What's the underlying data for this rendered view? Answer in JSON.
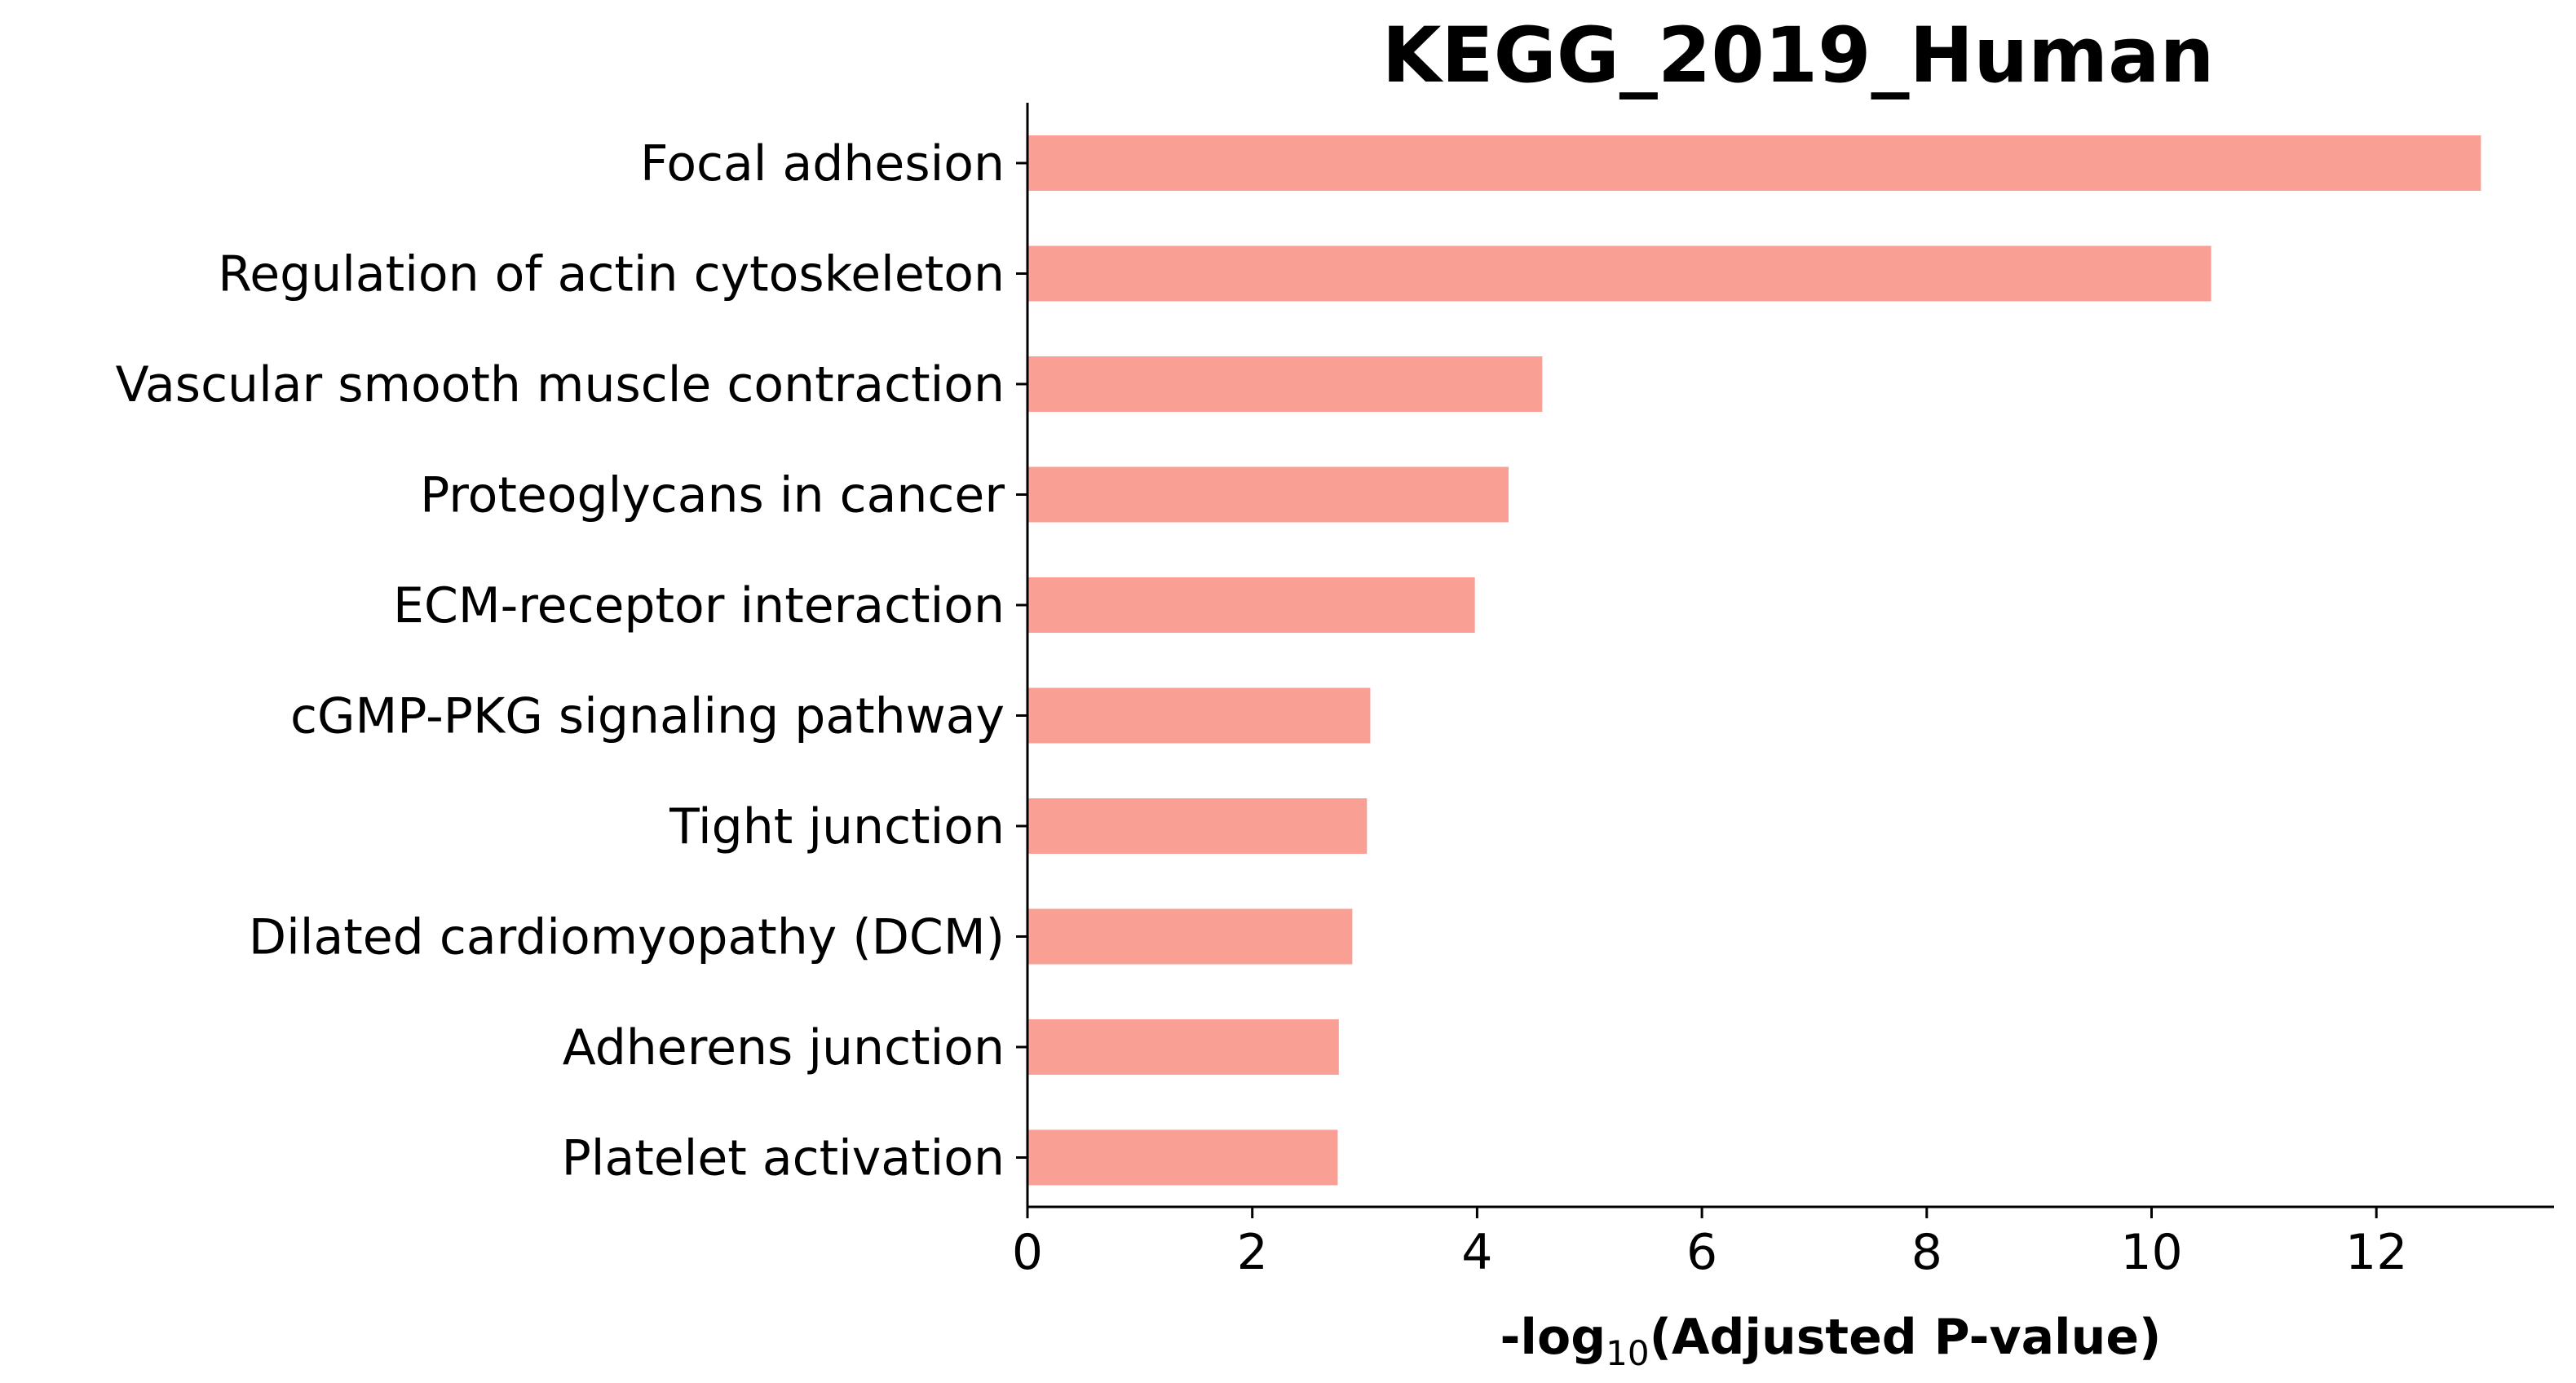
{
  "chart_data": {
    "type": "bar",
    "orientation": "horizontal",
    "title": "KEGG_2019_Human",
    "xlabel": {
      "prefix": "-log",
      "subscript": "10",
      "suffix": "(Adjusted P-value)"
    },
    "ylabel": "",
    "categories": [
      "Focal adhesion",
      "Regulation of actin cytoskeleton",
      "Vascular smooth muscle contraction",
      "Proteoglycans in cancer",
      "ECM-receptor interaction",
      "cGMP-PKG signaling pathway",
      "Tight junction",
      "Dilated cardiomyopathy (DCM)",
      "Adherens junction",
      "Platelet activation"
    ],
    "values": [
      12.93,
      10.53,
      4.58,
      4.28,
      3.98,
      3.05,
      3.02,
      2.89,
      2.77,
      2.76
    ],
    "xlim": [
      0,
      13.58
    ],
    "xticks": [
      0,
      2,
      4,
      6,
      8,
      10,
      12
    ],
    "bar_color": "#fa9f94",
    "grid": false,
    "legend": "none"
  }
}
